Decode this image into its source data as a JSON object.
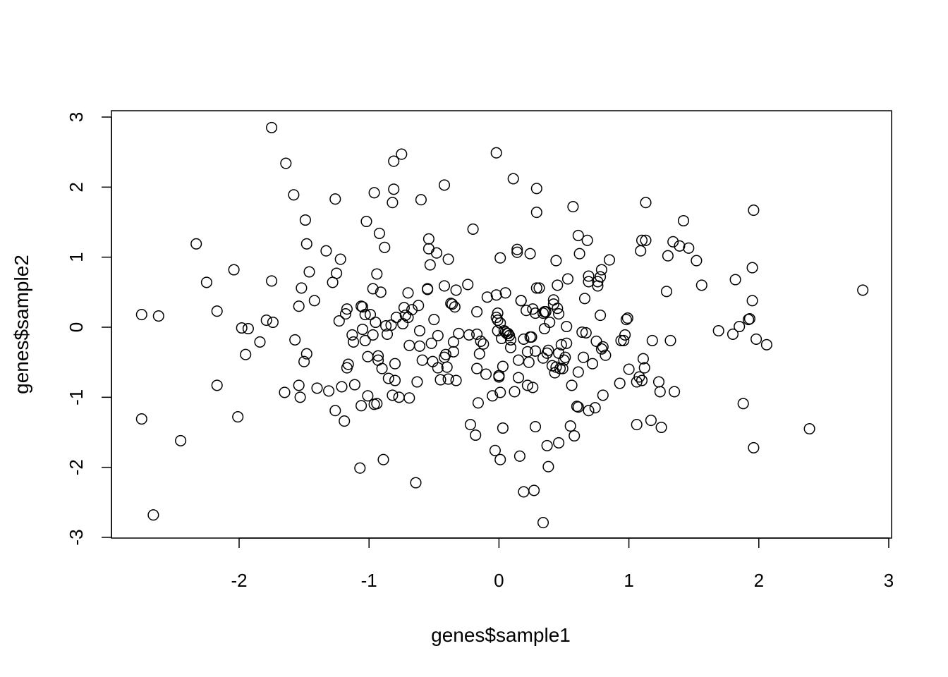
{
  "chart_data": {
    "type": "scatter",
    "title": "",
    "xlabel": "genes$sample1",
    "ylabel": "genes$sample2",
    "xlim": [
      -2.85,
      3.15
    ],
    "ylim": [
      -3,
      3
    ],
    "x_ticks": [
      -2,
      -1,
      0,
      1,
      2,
      3
    ],
    "y_ticks": [
      -3,
      -2,
      -1,
      0,
      1,
      2,
      3
    ],
    "marker": "open-circle",
    "color": "#000000",
    "points": [
      [
        -2.75,
        0.18
      ],
      [
        -2.62,
        0.16
      ],
      [
        -2.75,
        -1.31
      ],
      [
        -2.66,
        -2.68
      ],
      [
        -2.45,
        -1.62
      ],
      [
        -2.33,
        1.19
      ],
      [
        -2.25,
        0.64
      ],
      [
        -2.17,
        0.23
      ],
      [
        -2.17,
        -0.83
      ],
      [
        -2.04,
        0.82
      ],
      [
        -2.01,
        -1.28
      ],
      [
        -1.98,
        -0.01
      ],
      [
        -1.95,
        -0.39
      ],
      [
        -1.93,
        -0.02
      ],
      [
        -1.84,
        -0.21
      ],
      [
        -1.79,
        0.1
      ],
      [
        -1.75,
        2.85
      ],
      [
        -1.75,
        0.66
      ],
      [
        -1.74,
        0.07
      ],
      [
        -1.64,
        2.34
      ],
      [
        -1.65,
        -0.93
      ],
      [
        -1.58,
        1.89
      ],
      [
        -1.57,
        -0.18
      ],
      [
        -1.54,
        0.3
      ],
      [
        -1.54,
        -0.83
      ],
      [
        -1.53,
        -1.0
      ],
      [
        -1.52,
        0.56
      ],
      [
        -1.5,
        -0.49
      ],
      [
        -1.49,
        1.53
      ],
      [
        -1.48,
        1.19
      ],
      [
        -1.48,
        -0.38
      ],
      [
        -1.46,
        0.79
      ],
      [
        -1.42,
        0.38
      ],
      [
        -1.4,
        -0.87
      ],
      [
        -1.33,
        1.09
      ],
      [
        -1.31,
        -0.91
      ],
      [
        -1.28,
        0.64
      ],
      [
        -1.26,
        1.83
      ],
      [
        -1.26,
        -1.19
      ],
      [
        -1.25,
        0.77
      ],
      [
        -1.23,
        0.09
      ],
      [
        -1.22,
        0.97
      ],
      [
        -1.21,
        -0.85
      ],
      [
        -1.19,
        -1.34
      ],
      [
        -1.18,
        0.19
      ],
      [
        -1.17,
        0.26
      ],
      [
        -1.17,
        -0.58
      ],
      [
        -1.16,
        -0.53
      ],
      [
        -1.13,
        -0.11
      ],
      [
        -1.12,
        -0.21
      ],
      [
        -1.11,
        -0.82
      ],
      [
        -1.07,
        -2.01
      ],
      [
        -1.06,
        -1.12
      ],
      [
        -1.06,
        0.3
      ],
      [
        -1.05,
        0.29
      ],
      [
        -1.05,
        -0.03
      ],
      [
        -1.03,
        0.18
      ],
      [
        -1.03,
        -0.19
      ],
      [
        -1.02,
        1.51
      ],
      [
        -1.01,
        -0.42
      ],
      [
        -1.01,
        -0.98
      ],
      [
        -0.99,
        0.18
      ],
      [
        -0.97,
        -0.11
      ],
      [
        -0.97,
        0.55
      ],
      [
        -0.96,
        1.92
      ],
      [
        -0.96,
        -1.1
      ],
      [
        -0.95,
        0.07
      ],
      [
        -0.94,
        0.76
      ],
      [
        -0.94,
        -1.09
      ],
      [
        -0.93,
        -0.41
      ],
      [
        -0.93,
        -0.47
      ],
      [
        -0.92,
        1.34
      ],
      [
        -0.91,
        0.5
      ],
      [
        -0.9,
        -0.59
      ],
      [
        -0.89,
        -1.89
      ],
      [
        -0.88,
        1.14
      ],
      [
        -0.87,
        0.02
      ],
      [
        -0.86,
        -0.1
      ],
      [
        -0.85,
        -0.73
      ],
      [
        -0.83,
        0.03
      ],
      [
        -0.82,
        1.78
      ],
      [
        -0.82,
        -0.97
      ],
      [
        -0.81,
        1.97
      ],
      [
        -0.81,
        2.37
      ],
      [
        -0.8,
        -0.76
      ],
      [
        -0.8,
        -0.52
      ],
      [
        -0.79,
        0.14
      ],
      [
        -0.77,
        -1.0
      ],
      [
        -0.75,
        2.47
      ],
      [
        -0.74,
        0.05
      ],
      [
        -0.73,
        0.28
      ],
      [
        -0.72,
        0.17
      ],
      [
        -0.7,
        0.14
      ],
      [
        -0.7,
        0.49
      ],
      [
        -0.69,
        -1.01
      ],
      [
        -0.69,
        -0.26
      ],
      [
        -0.67,
        0.25
      ],
      [
        -0.64,
        -2.22
      ],
      [
        -0.63,
        -0.78
      ],
      [
        -0.62,
        0.31
      ],
      [
        -0.61,
        -0.05
      ],
      [
        -0.61,
        -0.27
      ],
      [
        -0.6,
        1.82
      ],
      [
        -0.59,
        -0.47
      ],
      [
        -0.55,
        0.55
      ],
      [
        -0.55,
        0.54
      ],
      [
        -0.54,
        1.26
      ],
      [
        -0.54,
        1.12
      ],
      [
        -0.53,
        0.89
      ],
      [
        -0.52,
        -0.23
      ],
      [
        -0.51,
        -0.49
      ],
      [
        -0.5,
        0.11
      ],
      [
        -0.48,
        1.06
      ],
      [
        -0.47,
        -0.12
      ],
      [
        -0.47,
        -0.58
      ],
      [
        -0.45,
        -0.75
      ],
      [
        -0.42,
        2.03
      ],
      [
        -0.42,
        0.59
      ],
      [
        -0.42,
        -0.43
      ],
      [
        -0.41,
        -0.39
      ],
      [
        -0.4,
        -0.57
      ],
      [
        -0.39,
        -0.74
      ],
      [
        -0.39,
        0.97
      ],
      [
        -0.37,
        0.34
      ],
      [
        -0.36,
        0.33
      ],
      [
        -0.35,
        -0.21
      ],
      [
        -0.35,
        -0.35
      ],
      [
        -0.34,
        0.29
      ],
      [
        -0.33,
        -0.76
      ],
      [
        -0.33,
        0.53
      ],
      [
        -0.31,
        -0.09
      ],
      [
        -0.24,
        0.61
      ],
      [
        -0.23,
        -0.11
      ],
      [
        -0.22,
        -1.39
      ],
      [
        -0.2,
        1.4
      ],
      [
        -0.18,
        -1.54
      ],
      [
        -0.17,
        -0.59
      ],
      [
        -0.17,
        -0.1
      ],
      [
        -0.17,
        0.22
      ],
      [
        -0.16,
        -1.08
      ],
      [
        -0.15,
        -0.38
      ],
      [
        -0.14,
        -0.2
      ],
      [
        -0.12,
        -0.24
      ],
      [
        -0.1,
        -0.67
      ],
      [
        -0.09,
        0.43
      ],
      [
        -0.05,
        -0.98
      ],
      [
        -0.03,
        -1.76
      ],
      [
        -0.02,
        2.49
      ],
      [
        -0.02,
        0.46
      ],
      [
        -0.02,
        0.14
      ],
      [
        -0.01,
        -0.05
      ],
      [
        -0.01,
        0.1
      ],
      [
        -0.01,
        0.2
      ],
      [
        0.0,
        -0.69
      ],
      [
        0.0,
        -0.71
      ],
      [
        0.01,
        -0.93
      ],
      [
        0.01,
        -1.89
      ],
      [
        0.01,
        0.99
      ],
      [
        0.01,
        0.06
      ],
      [
        0.02,
        -0.16
      ],
      [
        0.03,
        -0.56
      ],
      [
        0.03,
        -1.44
      ],
      [
        0.04,
        -0.05
      ],
      [
        0.05,
        0.49
      ],
      [
        0.05,
        -0.07
      ],
      [
        0.06,
        -0.09
      ],
      [
        0.07,
        -0.09
      ],
      [
        0.08,
        -0.12
      ],
      [
        0.08,
        -0.12
      ],
      [
        0.09,
        -0.18
      ],
      [
        0.09,
        -0.29
      ],
      [
        0.11,
        2.12
      ],
      [
        0.12,
        -0.92
      ],
      [
        0.14,
        1.11
      ],
      [
        0.14,
        1.07
      ],
      [
        0.15,
        -0.47
      ],
      [
        0.15,
        -0.72
      ],
      [
        0.16,
        -1.84
      ],
      [
        0.17,
        0.38
      ],
      [
        0.17,
        0.38
      ],
      [
        0.19,
        -2.35
      ],
      [
        0.19,
        -0.17
      ],
      [
        0.21,
        0.24
      ],
      [
        0.22,
        -0.35
      ],
      [
        0.22,
        -0.83
      ],
      [
        0.23,
        -0.5
      ],
      [
        0.24,
        1.05
      ],
      [
        0.24,
        -0.14
      ],
      [
        0.25,
        -0.14
      ],
      [
        0.26,
        -0.86
      ],
      [
        0.26,
        0.26
      ],
      [
        0.27,
        -2.33
      ],
      [
        0.28,
        -1.42
      ],
      [
        0.28,
        0.2
      ],
      [
        0.28,
        -0.34
      ],
      [
        0.29,
        1.98
      ],
      [
        0.29,
        1.64
      ],
      [
        0.29,
        0.56
      ],
      [
        0.31,
        0.56
      ],
      [
        0.34,
        -0.44
      ],
      [
        0.34,
        -2.79
      ],
      [
        0.34,
        0.2
      ],
      [
        0.35,
        -0.02
      ],
      [
        0.35,
        0.22
      ],
      [
        0.36,
        0.22
      ],
      [
        0.37,
        -1.69
      ],
      [
        0.37,
        -0.37
      ],
      [
        0.38,
        -1.99
      ],
      [
        0.38,
        -0.33
      ],
      [
        0.39,
        0.07
      ],
      [
        0.41,
        -0.55
      ],
      [
        0.42,
        0.39
      ],
      [
        0.42,
        0.33
      ],
      [
        0.43,
        -0.65
      ],
      [
        0.44,
        0.95
      ],
      [
        0.44,
        -0.57
      ],
      [
        0.45,
        0.6
      ],
      [
        0.45,
        0.27
      ],
      [
        0.46,
        -0.37
      ],
      [
        0.46,
        0.19
      ],
      [
        0.46,
        -1.65
      ],
      [
        0.47,
        -0.59
      ],
      [
        0.48,
        -0.25
      ],
      [
        0.49,
        -0.59
      ],
      [
        0.5,
        -0.47
      ],
      [
        0.51,
        -0.43
      ],
      [
        0.52,
        -0.23
      ],
      [
        0.52,
        0.01
      ],
      [
        0.53,
        0.69
      ],
      [
        0.55,
        -1.41
      ],
      [
        0.56,
        -0.83
      ],
      [
        0.57,
        1.72
      ],
      [
        0.58,
        -1.55
      ],
      [
        0.6,
        -1.13
      ],
      [
        0.61,
        -1.14
      ],
      [
        0.61,
        1.31
      ],
      [
        0.61,
        -0.64
      ],
      [
        0.62,
        1.05
      ],
      [
        0.64,
        -0.07
      ],
      [
        0.65,
        -0.43
      ],
      [
        0.66,
        0.41
      ],
      [
        0.67,
        -0.08
      ],
      [
        0.68,
        1.24
      ],
      [
        0.69,
        0.73
      ],
      [
        0.69,
        0.65
      ],
      [
        0.69,
        -1.19
      ],
      [
        0.72,
        -0.52
      ],
      [
        0.74,
        -1.15
      ],
      [
        0.75,
        -0.2
      ],
      [
        0.76,
        0.65
      ],
      [
        0.76,
        0.59
      ],
      [
        0.78,
        0.17
      ],
      [
        0.78,
        0.72
      ],
      [
        0.79,
        0.82
      ],
      [
        0.79,
        -0.31
      ],
      [
        0.8,
        -0.28
      ],
      [
        0.8,
        -0.97
      ],
      [
        0.82,
        -0.4
      ],
      [
        0.85,
        0.96
      ],
      [
        0.93,
        -0.8
      ],
      [
        0.94,
        -0.19
      ],
      [
        0.96,
        -0.19
      ],
      [
        0.97,
        -0.11
      ],
      [
        0.98,
        0.11
      ],
      [
        0.99,
        0.13
      ],
      [
        1.0,
        -0.6
      ],
      [
        1.06,
        -1.39
      ],
      [
        1.06,
        -0.78
      ],
      [
        1.08,
        -0.71
      ],
      [
        1.09,
        1.09
      ],
      [
        1.1,
        -0.76
      ],
      [
        1.1,
        1.24
      ],
      [
        1.11,
        -0.45
      ],
      [
        1.12,
        -0.58
      ],
      [
        1.13,
        1.78
      ],
      [
        1.13,
        1.24
      ],
      [
        1.17,
        -1.33
      ],
      [
        1.18,
        -0.19
      ],
      [
        1.23,
        -0.78
      ],
      [
        1.24,
        -0.92
      ],
      [
        1.25,
        -1.43
      ],
      [
        1.29,
        0.51
      ],
      [
        1.3,
        1.02
      ],
      [
        1.32,
        -0.19
      ],
      [
        1.34,
        1.22
      ],
      [
        1.35,
        -0.92
      ],
      [
        1.39,
        1.16
      ],
      [
        1.42,
        1.52
      ],
      [
        1.46,
        1.13
      ],
      [
        1.52,
        0.95
      ],
      [
        1.56,
        0.6
      ],
      [
        1.69,
        -0.05
      ],
      [
        1.8,
        -0.1
      ],
      [
        1.82,
        0.68
      ],
      [
        1.85,
        0.01
      ],
      [
        1.88,
        -1.09
      ],
      [
        1.92,
        0.11
      ],
      [
        1.93,
        0.12
      ],
      [
        1.95,
        0.38
      ],
      [
        1.95,
        0.85
      ],
      [
        1.96,
        1.67
      ],
      [
        1.96,
        -1.72
      ],
      [
        1.98,
        -0.17
      ],
      [
        2.06,
        -0.25
      ],
      [
        2.39,
        -1.45
      ],
      [
        2.8,
        0.53
      ]
    ]
  }
}
